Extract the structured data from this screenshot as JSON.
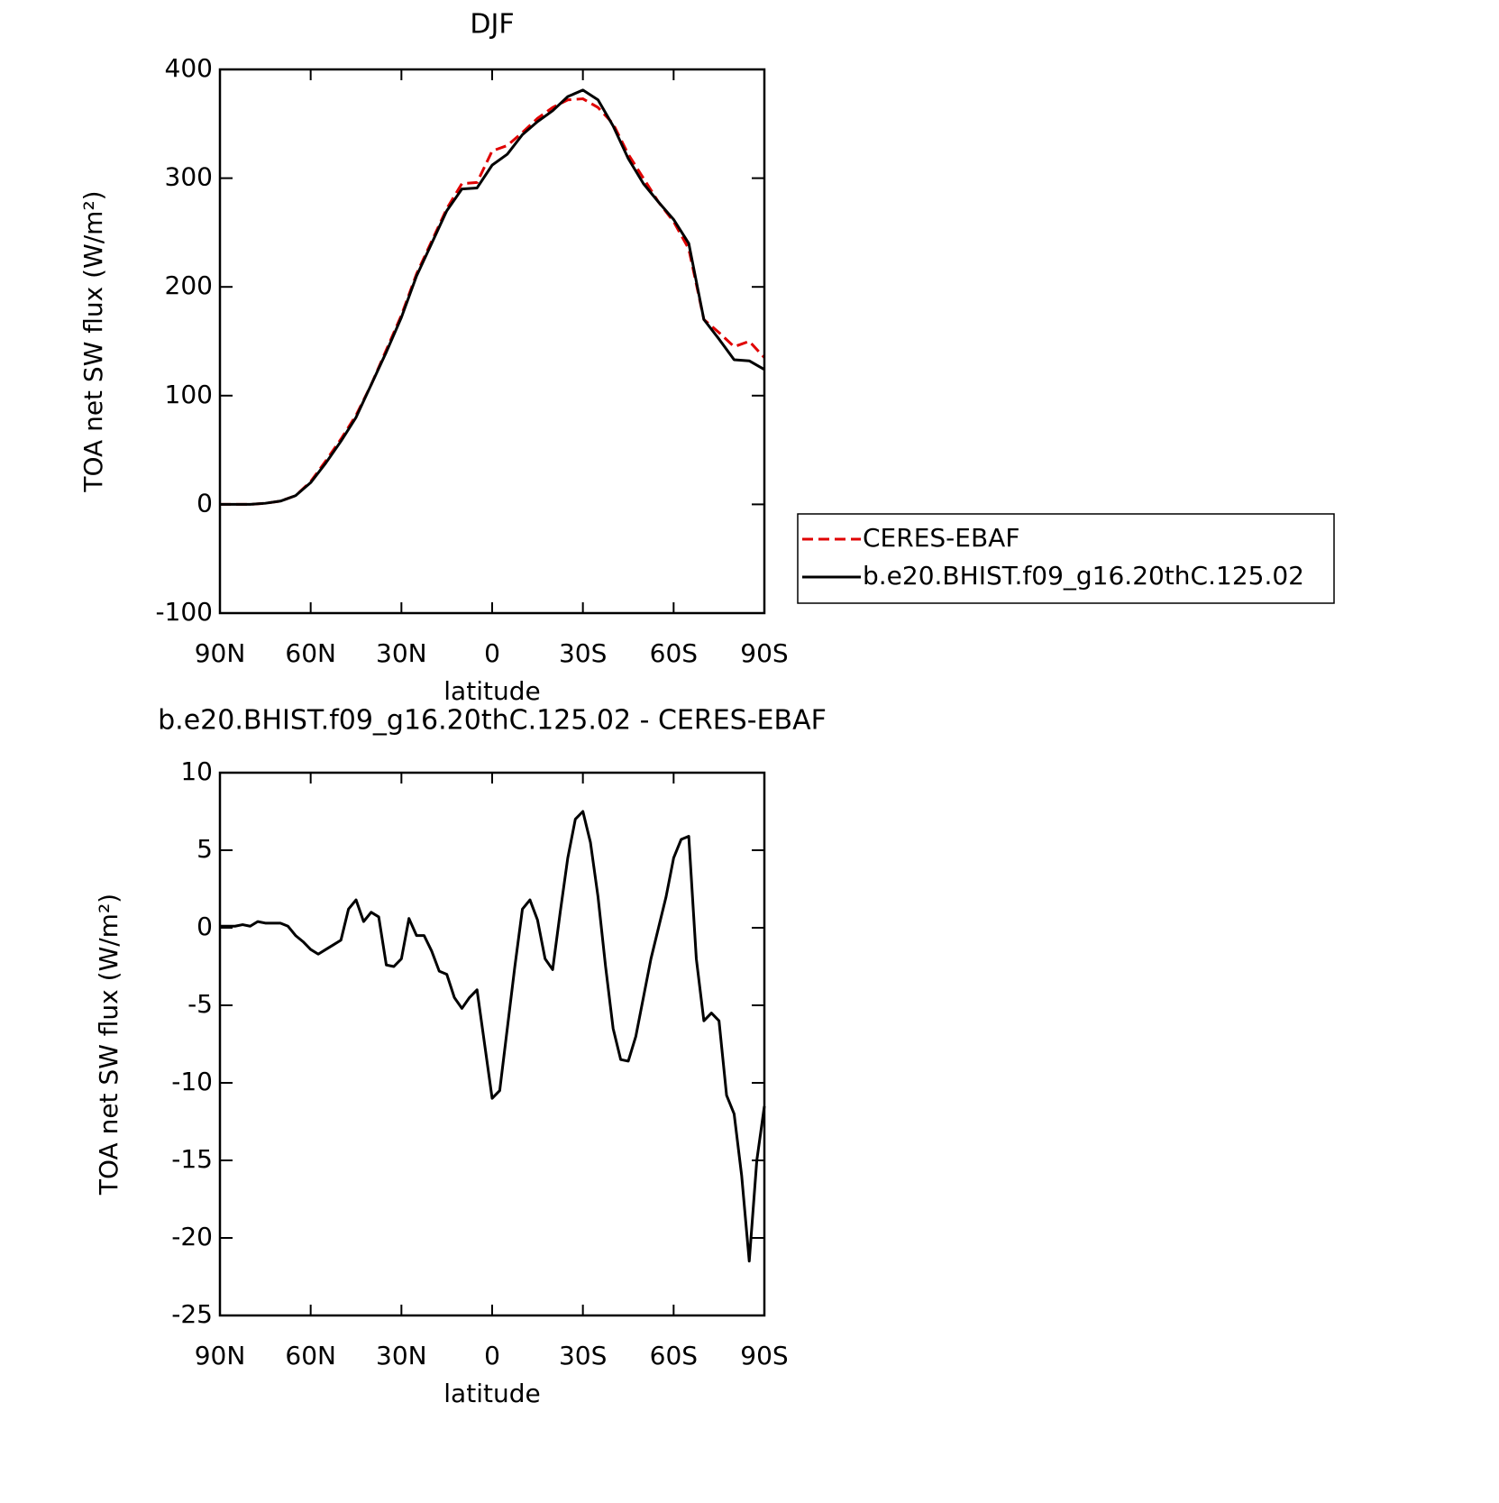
{
  "chart_data": [
    {
      "type": "line",
      "title": "DJF",
      "xlabel": "latitude",
      "ylabel": "TOA net SW flux (W/m²)",
      "xlim": [
        90,
        -90
      ],
      "xticks": [
        {
          "value": 90,
          "label": "90N"
        },
        {
          "value": 60,
          "label": "60N"
        },
        {
          "value": 30,
          "label": "30N"
        },
        0,
        {
          "value": -30,
          "label": "30S"
        },
        {
          "value": -60,
          "label": "60S"
        },
        {
          "value": -90,
          "label": "90S"
        }
      ],
      "ylim": [
        -100,
        400
      ],
      "yticks": [
        -100,
        0,
        100,
        200,
        300,
        400
      ],
      "legend": "right",
      "x": [
        90,
        85,
        80,
        75,
        70,
        65,
        60,
        55,
        50,
        45,
        40,
        35,
        30,
        25,
        20,
        15,
        10,
        5,
        0,
        -5,
        -10,
        -15,
        -20,
        -25,
        -30,
        -35,
        -40,
        -45,
        -50,
        -55,
        -60,
        -65,
        -70,
        -75,
        -80,
        -85,
        -90
      ],
      "series": [
        {
          "name": "CERES-EBAF",
          "color": "#e00000",
          "linestyle": "dashed",
          "values": [
            0,
            0,
            0,
            1,
            3,
            8,
            21,
            40,
            60,
            82,
            110,
            142,
            174,
            212,
            242,
            272,
            295,
            296,
            325,
            330,
            342,
            355,
            365,
            372,
            373,
            365,
            350,
            322,
            300,
            278,
            260,
            235,
            170,
            158,
            145,
            150,
            135
          ]
        },
        {
          "name": "b.e20.BHIST.f09_g16.20thC.125.02",
          "color": "#000000",
          "linestyle": "solid",
          "values": [
            0,
            0,
            0,
            1,
            3,
            8,
            20,
            38,
            58,
            80,
            110,
            140,
            172,
            210,
            240,
            270,
            290,
            291,
            312,
            322,
            340,
            352,
            362,
            375,
            381,
            372,
            348,
            318,
            295,
            278,
            262,
            240,
            170,
            152,
            133,
            132,
            124
          ]
        }
      ]
    },
    {
      "type": "line",
      "title": "b.e20.BHIST.f09_g16.20thC.125.02 - CERES-EBAF",
      "xlabel": "latitude",
      "ylabel": "TOA net SW flux (W/m²)",
      "xlim": [
        90,
        -90
      ],
      "xticks": [
        {
          "value": 90,
          "label": "90N"
        },
        {
          "value": 60,
          "label": "60N"
        },
        {
          "value": 30,
          "label": "30N"
        },
        0,
        {
          "value": -30,
          "label": "30S"
        },
        {
          "value": -60,
          "label": "60S"
        },
        {
          "value": -90,
          "label": "90S"
        }
      ],
      "ylim": [
        -25,
        10
      ],
      "yticks": [
        -25,
        -20,
        -15,
        -10,
        -5,
        0,
        5,
        10
      ],
      "x": [
        90,
        87.5,
        85,
        82.5,
        80,
        77.5,
        75,
        72.5,
        70,
        67.5,
        65,
        62.5,
        60,
        57.5,
        55,
        52.5,
        50,
        47.5,
        45,
        42.5,
        40,
        37.5,
        35,
        32.5,
        30,
        27.5,
        25,
        22.5,
        20,
        17.5,
        15,
        12.5,
        10,
        7.5,
        5,
        2.5,
        0,
        -2.5,
        -5,
        -7.5,
        -10,
        -12.5,
        -15,
        -17.5,
        -20,
        -22.5,
        -25,
        -27.5,
        -30,
        -32.5,
        -35,
        -37.5,
        -40,
        -42.5,
        -45,
        -47.5,
        -50,
        -52.5,
        -55,
        -57.5,
        -60,
        -62.5,
        -65,
        -67.5,
        -70,
        -72.5,
        -75,
        -77.5,
        -80,
        -82.5,
        -85,
        -87.5,
        -90
      ],
      "series": [
        {
          "color": "#000000",
          "linestyle": "solid",
          "values": [
            0.1,
            0.1,
            0.1,
            0.2,
            0.1,
            0.4,
            0.3,
            0.3,
            0.3,
            0.1,
            -0.5,
            -0.9,
            -1.4,
            -1.7,
            -1.4,
            -1.1,
            -0.8,
            1.2,
            1.8,
            0.4,
            1.0,
            0.7,
            -2.4,
            -2.5,
            -2.0,
            0.6,
            -0.5,
            -0.5,
            -1.5,
            -2.8,
            -3.0,
            -4.5,
            -5.2,
            -4.5,
            -4.0,
            -7.5,
            -11.0,
            -10.5,
            -6.5,
            -2.5,
            1.2,
            1.8,
            0.5,
            -2.0,
            -2.7,
            1.0,
            4.5,
            7.0,
            7.5,
            5.5,
            2.0,
            -2.5,
            -6.5,
            -8.5,
            -8.6,
            -7.0,
            -4.5,
            -2.0,
            0.0,
            2.0,
            4.5,
            5.7,
            5.9,
            -2.0,
            -6.0,
            -5.5,
            -6.0,
            -10.8,
            -12.0,
            -16.0,
            -21.5,
            -15.0,
            -11.5
          ]
        }
      ]
    }
  ]
}
